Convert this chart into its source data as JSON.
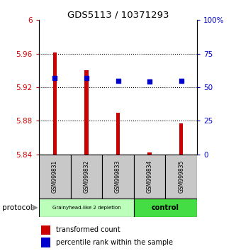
{
  "title": "GDS5113 / 10371293",
  "samples": [
    "GSM999831",
    "GSM999832",
    "GSM999833",
    "GSM999834",
    "GSM999835"
  ],
  "bar_values": [
    5.961,
    5.94,
    5.89,
    5.842,
    5.877
  ],
  "bar_bottom": 5.84,
  "percentile_values": [
    57,
    57,
    55,
    54,
    55
  ],
  "ylim_left": [
    5.84,
    6.0
  ],
  "ylim_right": [
    0,
    100
  ],
  "yticks_left": [
    5.84,
    5.88,
    5.92,
    5.96,
    6.0
  ],
  "ytick_labels_left": [
    "5.84",
    "5.88",
    "5.92",
    "5.96",
    "6"
  ],
  "yticks_right": [
    0,
    25,
    50,
    75,
    100
  ],
  "ytick_labels_right": [
    "0",
    "25",
    "50",
    "75",
    "100%"
  ],
  "hlines": [
    5.88,
    5.92,
    5.96
  ],
  "bar_color": "#CC0000",
  "dot_color": "#0000CC",
  "group1_color": "#BBFFBB",
  "group2_color": "#44DD44",
  "group1_label": "Grainyhead-like 2 depletion",
  "group2_label": "control",
  "group1_samples": [
    0,
    1,
    2
  ],
  "group2_samples": [
    3,
    4
  ],
  "protocol_label": "protocol",
  "legend_bar_label": "transformed count",
  "legend_dot_label": "percentile rank within the sample",
  "bar_width": 0.12,
  "tick_label_color_left": "#CC0000",
  "tick_label_color_right": "#0000CC"
}
